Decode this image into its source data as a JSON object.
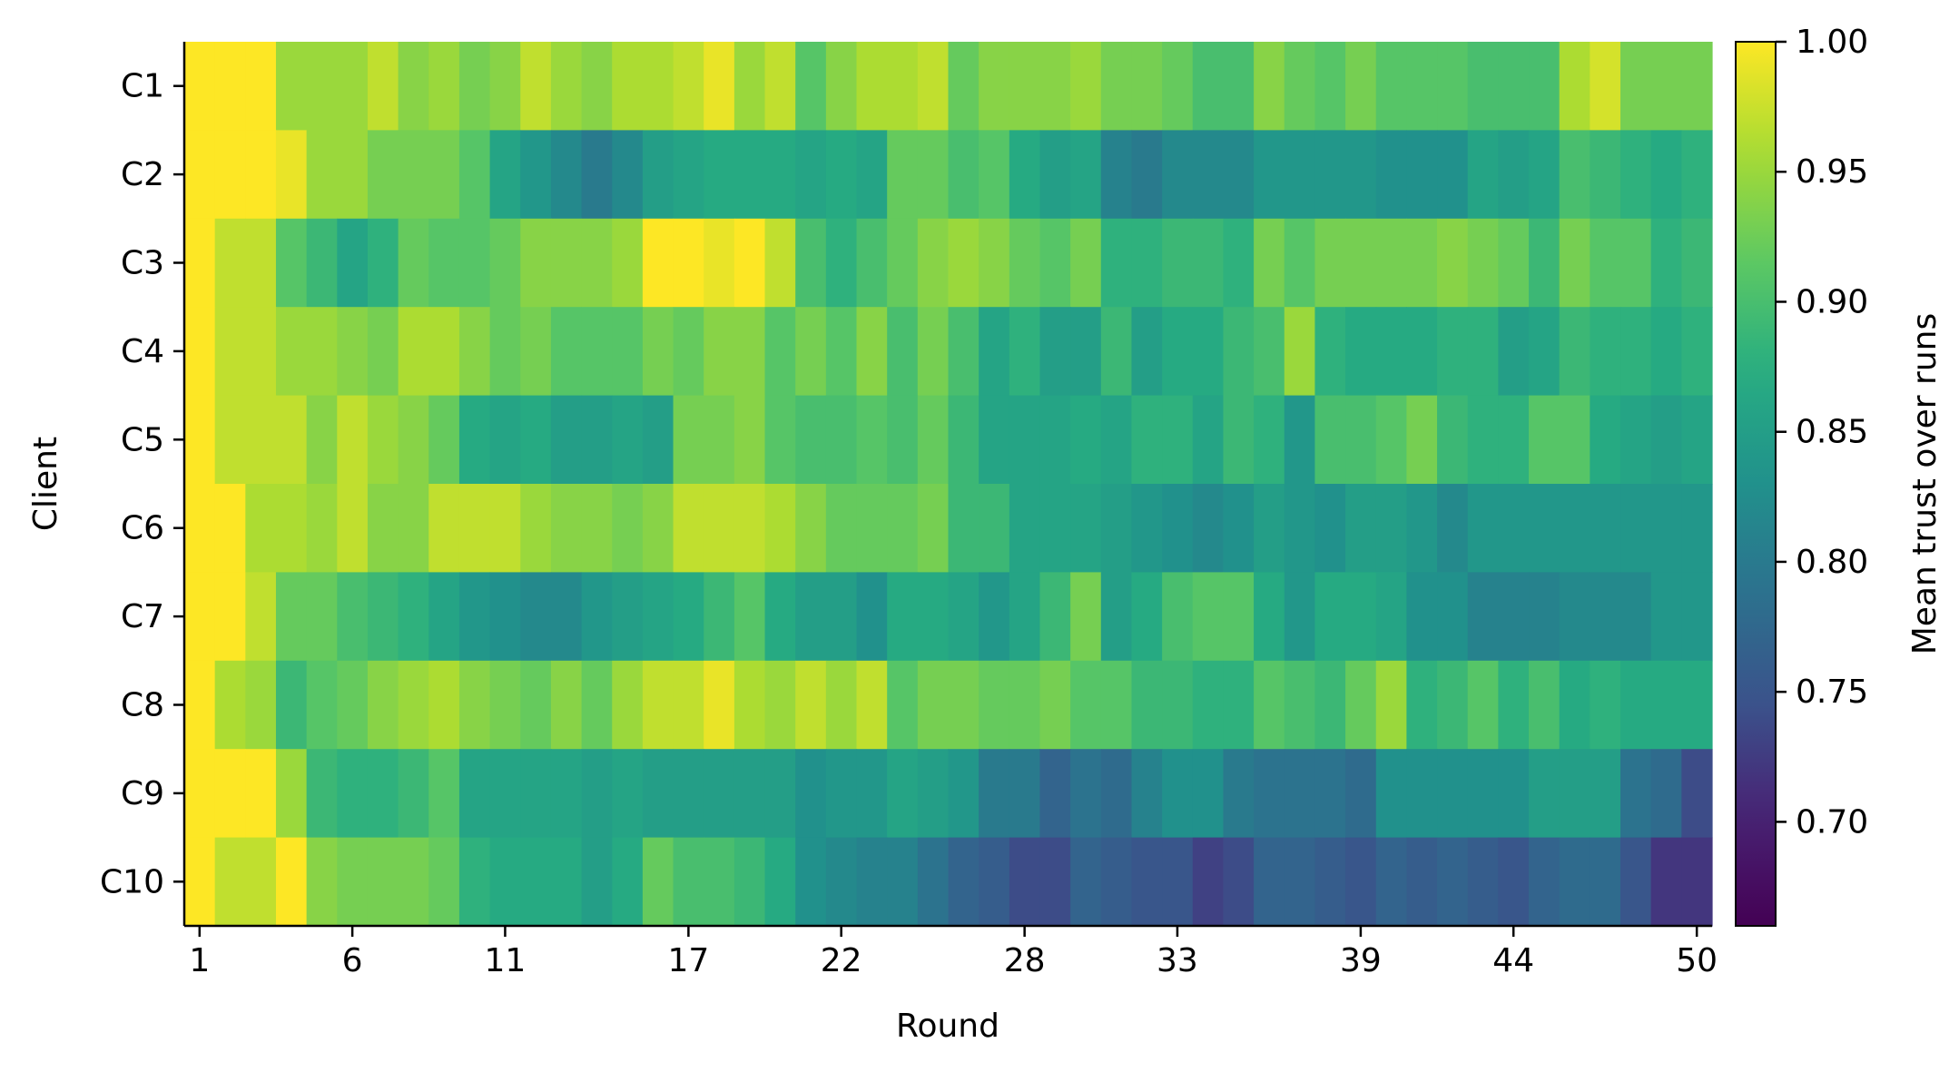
{
  "chart_data": {
    "type": "heatmap",
    "xlabel": "Round",
    "ylabel": "Client",
    "colorbar_label": "Mean trust over runs",
    "x_tick_labels": [
      "1",
      "6",
      "11",
      "17",
      "22",
      "28",
      "33",
      "39",
      "44",
      "50"
    ],
    "x_tick_rounds": [
      1,
      6,
      11,
      17,
      22,
      28,
      33,
      39,
      44,
      50
    ],
    "rows": [
      "C1",
      "C2",
      "C3",
      "C4",
      "C5",
      "C6",
      "C7",
      "C8",
      "C9",
      "C10"
    ],
    "colorbar_ticks": [
      "0.70",
      "0.75",
      "0.80",
      "0.85",
      "0.90",
      "0.95",
      "1.00"
    ],
    "colorbar_tick_values": [
      0.7,
      0.75,
      0.8,
      0.85,
      0.9,
      0.95,
      1.0
    ],
    "vmin": 0.66,
    "vmax": 1.0,
    "colormap": "viridis",
    "values": [
      [
        1.0,
        1.0,
        1.0,
        0.95,
        0.95,
        0.95,
        0.97,
        0.94,
        0.95,
        0.93,
        0.94,
        0.97,
        0.95,
        0.94,
        0.96,
        0.96,
        0.97,
        0.99,
        0.95,
        0.97,
        0.91,
        0.94,
        0.96,
        0.96,
        0.97,
        0.92,
        0.94,
        0.94,
        0.94,
        0.95,
        0.93,
        0.93,
        0.92,
        0.9,
        0.9,
        0.94,
        0.92,
        0.91,
        0.93,
        0.91,
        0.91,
        0.91,
        0.9,
        0.9,
        0.9,
        0.96,
        0.98,
        0.93,
        0.93,
        0.93
      ],
      [
        1.0,
        1.0,
        1.0,
        0.99,
        0.95,
        0.95,
        0.93,
        0.93,
        0.93,
        0.91,
        0.86,
        0.84,
        0.82,
        0.8,
        0.82,
        0.85,
        0.86,
        0.87,
        0.87,
        0.87,
        0.86,
        0.87,
        0.86,
        0.92,
        0.92,
        0.9,
        0.91,
        0.87,
        0.85,
        0.86,
        0.81,
        0.8,
        0.82,
        0.82,
        0.82,
        0.84,
        0.84,
        0.84,
        0.84,
        0.83,
        0.83,
        0.83,
        0.86,
        0.85,
        0.86,
        0.9,
        0.89,
        0.88,
        0.87,
        0.88
      ],
      [
        1.0,
        0.97,
        0.97,
        0.91,
        0.89,
        0.86,
        0.88,
        0.92,
        0.91,
        0.91,
        0.92,
        0.94,
        0.94,
        0.94,
        0.95,
        1.0,
        1.0,
        0.99,
        1.0,
        0.97,
        0.9,
        0.88,
        0.9,
        0.92,
        0.94,
        0.95,
        0.94,
        0.92,
        0.91,
        0.93,
        0.88,
        0.88,
        0.89,
        0.89,
        0.88,
        0.93,
        0.91,
        0.93,
        0.93,
        0.93,
        0.93,
        0.94,
        0.93,
        0.92,
        0.89,
        0.93,
        0.91,
        0.91,
        0.88,
        0.89
      ],
      [
        1.0,
        0.97,
        0.97,
        0.95,
        0.95,
        0.94,
        0.93,
        0.96,
        0.96,
        0.94,
        0.92,
        0.93,
        0.91,
        0.91,
        0.91,
        0.93,
        0.92,
        0.94,
        0.94,
        0.91,
        0.93,
        0.91,
        0.94,
        0.9,
        0.93,
        0.9,
        0.86,
        0.88,
        0.85,
        0.85,
        0.89,
        0.85,
        0.87,
        0.87,
        0.89,
        0.9,
        0.95,
        0.88,
        0.87,
        0.87,
        0.87,
        0.88,
        0.88,
        0.85,
        0.86,
        0.89,
        0.88,
        0.88,
        0.87,
        0.88
      ],
      [
        1.0,
        0.97,
        0.97,
        0.97,
        0.94,
        0.97,
        0.95,
        0.94,
        0.92,
        0.87,
        0.86,
        0.87,
        0.85,
        0.85,
        0.86,
        0.85,
        0.93,
        0.93,
        0.94,
        0.91,
        0.9,
        0.9,
        0.91,
        0.9,
        0.92,
        0.89,
        0.86,
        0.86,
        0.86,
        0.87,
        0.86,
        0.88,
        0.88,
        0.86,
        0.89,
        0.88,
        0.84,
        0.9,
        0.9,
        0.91,
        0.93,
        0.89,
        0.88,
        0.88,
        0.91,
        0.91,
        0.87,
        0.86,
        0.85,
        0.86
      ],
      [
        1.0,
        1.0,
        0.96,
        0.96,
        0.95,
        0.97,
        0.94,
        0.94,
        0.97,
        0.97,
        0.97,
        0.95,
        0.94,
        0.94,
        0.93,
        0.94,
        0.97,
        0.97,
        0.97,
        0.96,
        0.94,
        0.92,
        0.92,
        0.92,
        0.93,
        0.89,
        0.89,
        0.86,
        0.86,
        0.86,
        0.85,
        0.84,
        0.83,
        0.82,
        0.83,
        0.85,
        0.84,
        0.83,
        0.85,
        0.85,
        0.84,
        0.82,
        0.84,
        0.84,
        0.84,
        0.84,
        0.84,
        0.84,
        0.84,
        0.84
      ],
      [
        1.0,
        1.0,
        0.97,
        0.92,
        0.92,
        0.9,
        0.89,
        0.88,
        0.86,
        0.84,
        0.83,
        0.82,
        0.82,
        0.84,
        0.85,
        0.86,
        0.87,
        0.89,
        0.91,
        0.87,
        0.85,
        0.85,
        0.83,
        0.87,
        0.87,
        0.86,
        0.84,
        0.86,
        0.89,
        0.93,
        0.85,
        0.87,
        0.9,
        0.91,
        0.91,
        0.87,
        0.84,
        0.87,
        0.87,
        0.86,
        0.83,
        0.83,
        0.81,
        0.81,
        0.81,
        0.82,
        0.82,
        0.82,
        0.84,
        0.84
      ],
      [
        1.0,
        0.96,
        0.95,
        0.89,
        0.91,
        0.92,
        0.94,
        0.95,
        0.96,
        0.94,
        0.93,
        0.92,
        0.94,
        0.92,
        0.95,
        0.97,
        0.97,
        0.99,
        0.96,
        0.95,
        0.97,
        0.95,
        0.97,
        0.91,
        0.93,
        0.93,
        0.92,
        0.92,
        0.93,
        0.91,
        0.91,
        0.89,
        0.89,
        0.88,
        0.88,
        0.91,
        0.9,
        0.89,
        0.92,
        0.95,
        0.88,
        0.89,
        0.91,
        0.88,
        0.9,
        0.87,
        0.88,
        0.87,
        0.87,
        0.87
      ],
      [
        1.0,
        1.0,
        1.0,
        0.95,
        0.89,
        0.88,
        0.88,
        0.89,
        0.91,
        0.86,
        0.86,
        0.86,
        0.86,
        0.85,
        0.86,
        0.85,
        0.85,
        0.85,
        0.85,
        0.85,
        0.83,
        0.84,
        0.84,
        0.86,
        0.85,
        0.84,
        0.8,
        0.8,
        0.77,
        0.79,
        0.78,
        0.81,
        0.83,
        0.83,
        0.8,
        0.79,
        0.79,
        0.79,
        0.78,
        0.83,
        0.83,
        0.83,
        0.83,
        0.83,
        0.85,
        0.85,
        0.85,
        0.79,
        0.78,
        0.74
      ],
      [
        1.0,
        0.97,
        0.97,
        1.0,
        0.94,
        0.93,
        0.93,
        0.93,
        0.92,
        0.88,
        0.87,
        0.87,
        0.87,
        0.85,
        0.87,
        0.92,
        0.9,
        0.9,
        0.89,
        0.87,
        0.83,
        0.82,
        0.81,
        0.81,
        0.79,
        0.77,
        0.76,
        0.74,
        0.74,
        0.77,
        0.76,
        0.75,
        0.75,
        0.73,
        0.74,
        0.77,
        0.77,
        0.76,
        0.75,
        0.77,
        0.76,
        0.77,
        0.76,
        0.75,
        0.77,
        0.78,
        0.78,
        0.75,
        0.72,
        0.72
      ]
    ]
  }
}
